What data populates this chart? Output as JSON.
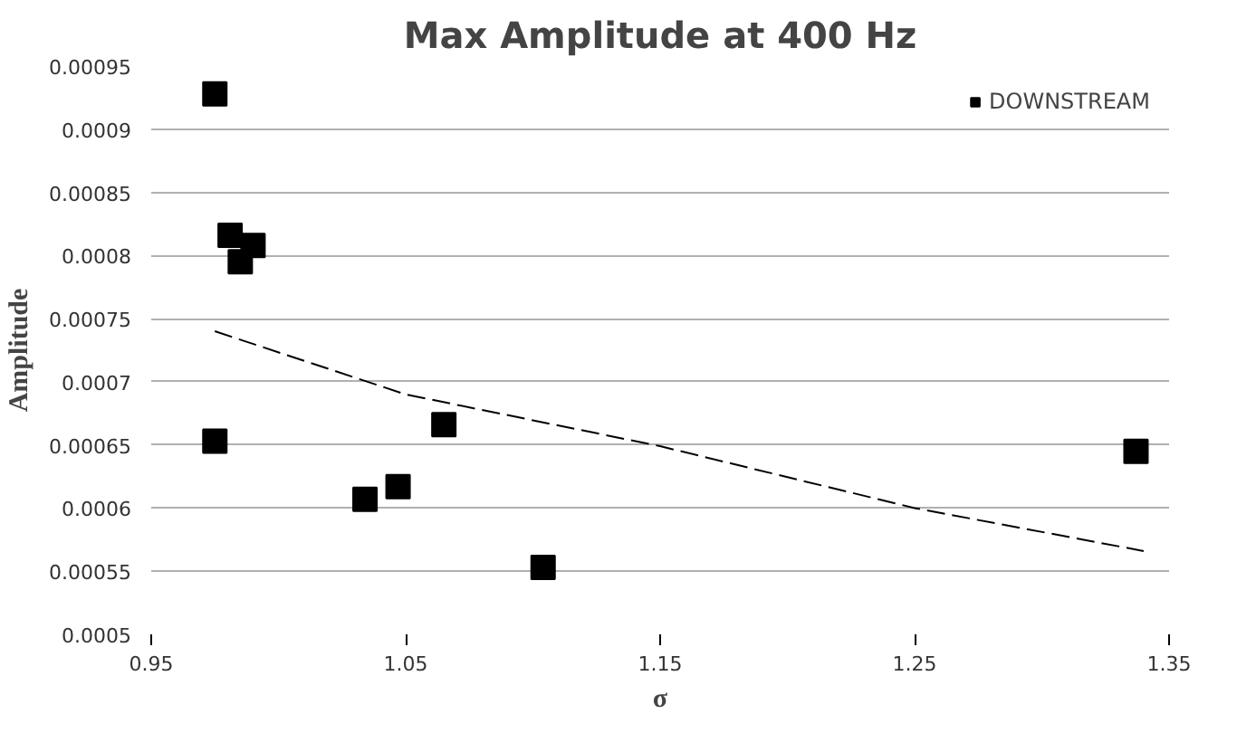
{
  "chart_data": {
    "type": "scatter",
    "title": "Max Amplitude at 400 Hz",
    "xlabel": "σ",
    "ylabel": "Amplitude",
    "xlim": [
      0.95,
      1.35
    ],
    "xticks": [
      0.95,
      1.05,
      1.15,
      1.25,
      1.35
    ],
    "ylim": [
      0.0005,
      0.00095
    ],
    "yticks": [
      0.0005,
      0.00055,
      0.0006,
      0.00065,
      0.0007,
      0.00075,
      0.0008,
      0.00085,
      0.0009,
      0.00095
    ],
    "grid": "y",
    "legend": "top right",
    "series": [
      {
        "name": "DOWNSTREAM",
        "color": "#000000",
        "marker": "square",
        "x": [
          0.975,
          0.981,
          0.985,
          0.99,
          0.975,
          1.034,
          1.047,
          1.065,
          1.104,
          1.337
        ],
        "values": [
          0.000928,
          0.000816,
          0.000795,
          0.000808,
          0.000653,
          0.000607,
          0.000617,
          0.000666,
          0.000553,
          0.000645
        ]
      },
      {
        "type": "line",
        "color": "#000000",
        "line_style": "dashed",
        "marker": "none",
        "x": [
          0.975,
          1.05,
          1.15,
          1.25,
          1.34
        ],
        "values": [
          0.00074,
          0.00069,
          0.000649,
          0.0006,
          0.000566
        ]
      }
    ]
  }
}
